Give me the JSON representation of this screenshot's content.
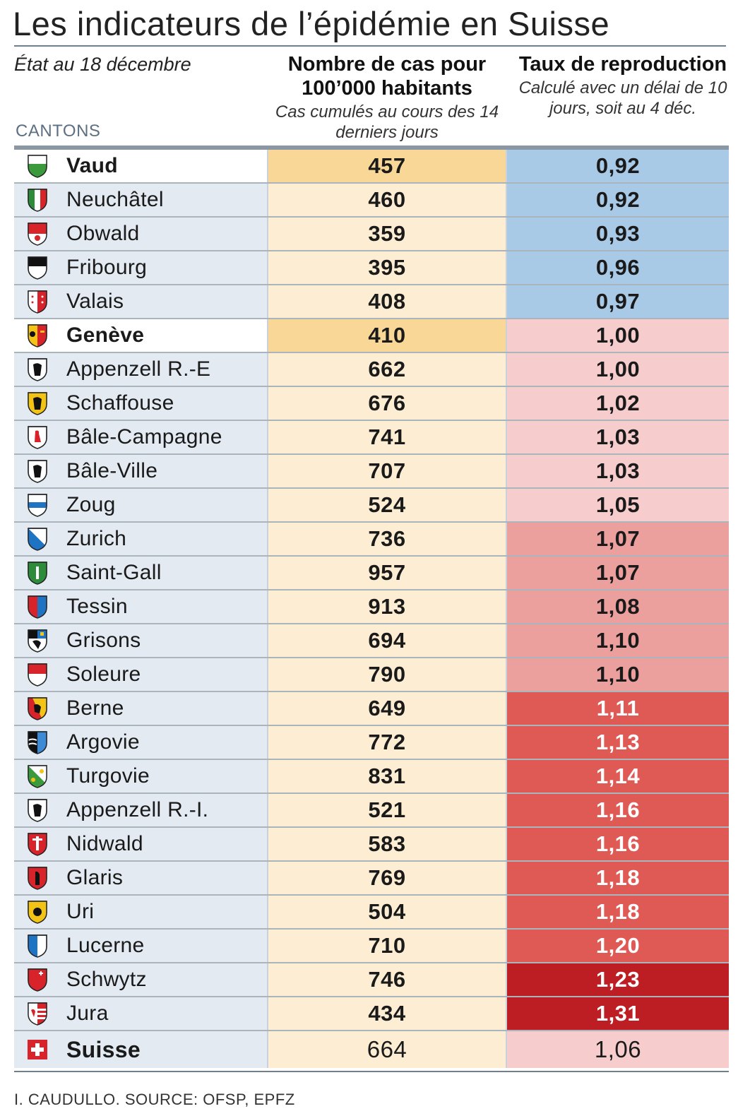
{
  "title": "Les indicateurs de l’épidémie en Suisse",
  "date": "État au 18 décembre",
  "cantons_label": "CANTONS",
  "columns": {
    "cases_title": "Nombre de cas pour 100’000 habitants",
    "cases_subtitle": "Cas cumulés au cours des 14 derniers jours",
    "rt_title": "Taux de reproduction",
    "rt_subtitle": "Calculé avec un délai de 10 jours, soit au 4 déc."
  },
  "colors": {
    "rt_below_1": "#a9cae6",
    "rt_1_to_105": "#f6cccc",
    "rt_106_to_110": "#eca09e",
    "rt_111_to_120": "#e05a55",
    "rt_above_120": "#bd1e24",
    "cases_bg": "#fdeed3",
    "cases_highlight": "#f9d897",
    "name_bg": "#e3eaf2"
  },
  "chart_data": {
    "type": "table",
    "title": "Les indicateurs de l’épidémie en Suisse",
    "columns": [
      "CANTONS",
      "Nombre de cas pour 100’000 habitants",
      "Taux de reproduction"
    ],
    "rows": [
      {
        "canton": "Vaud",
        "cases": 457,
        "rt": "0,92",
        "rt_value": 0.92,
        "highlight": true,
        "icon": "vaud-coat-of-arms-icon"
      },
      {
        "canton": "Neuchâtel",
        "cases": 460,
        "rt": "0,92",
        "rt_value": 0.92,
        "highlight": false,
        "icon": "neuchatel-coat-of-arms-icon"
      },
      {
        "canton": "Obwald",
        "cases": 359,
        "rt": "0,93",
        "rt_value": 0.93,
        "highlight": false,
        "icon": "obwald-coat-of-arms-icon"
      },
      {
        "canton": "Fribourg",
        "cases": 395,
        "rt": "0,96",
        "rt_value": 0.96,
        "highlight": false,
        "icon": "fribourg-coat-of-arms-icon"
      },
      {
        "canton": "Valais",
        "cases": 408,
        "rt": "0,97",
        "rt_value": 0.97,
        "highlight": false,
        "icon": "valais-coat-of-arms-icon"
      },
      {
        "canton": "Genève",
        "cases": 410,
        "rt": "1,00",
        "rt_value": 1.0,
        "highlight": true,
        "icon": "geneve-coat-of-arms-icon"
      },
      {
        "canton": "Appenzell R.-E",
        "cases": 662,
        "rt": "1,00",
        "rt_value": 1.0,
        "highlight": false,
        "icon": "appenzell-re-coat-of-arms-icon"
      },
      {
        "canton": "Schaffouse",
        "cases": 676,
        "rt": "1,02",
        "rt_value": 1.02,
        "highlight": false,
        "icon": "schaffouse-coat-of-arms-icon"
      },
      {
        "canton": "Bâle-Campagne",
        "cases": 741,
        "rt": "1,03",
        "rt_value": 1.03,
        "highlight": false,
        "icon": "bale-campagne-coat-of-arms-icon"
      },
      {
        "canton": "Bâle-Ville",
        "cases": 707,
        "rt": "1,03",
        "rt_value": 1.03,
        "highlight": false,
        "icon": "bale-ville-coat-of-arms-icon"
      },
      {
        "canton": "Zoug",
        "cases": 524,
        "rt": "1,05",
        "rt_value": 1.05,
        "highlight": false,
        "icon": "zoug-coat-of-arms-icon"
      },
      {
        "canton": "Zurich",
        "cases": 736,
        "rt": "1,07",
        "rt_value": 1.07,
        "highlight": false,
        "icon": "zurich-coat-of-arms-icon"
      },
      {
        "canton": "Saint-Gall",
        "cases": 957,
        "rt": "1,07",
        "rt_value": 1.07,
        "highlight": false,
        "icon": "saint-gall-coat-of-arms-icon"
      },
      {
        "canton": "Tessin",
        "cases": 913,
        "rt": "1,08",
        "rt_value": 1.08,
        "highlight": false,
        "icon": "tessin-coat-of-arms-icon"
      },
      {
        "canton": "Grisons",
        "cases": 694,
        "rt": "1,10",
        "rt_value": 1.1,
        "highlight": false,
        "icon": "grisons-coat-of-arms-icon"
      },
      {
        "canton": "Soleure",
        "cases": 790,
        "rt": "1,10",
        "rt_value": 1.1,
        "highlight": false,
        "icon": "soleure-coat-of-arms-icon"
      },
      {
        "canton": "Berne",
        "cases": 649,
        "rt": "1,11",
        "rt_value": 1.11,
        "highlight": false,
        "icon": "berne-coat-of-arms-icon"
      },
      {
        "canton": "Argovie",
        "cases": 772,
        "rt": "1,13",
        "rt_value": 1.13,
        "highlight": false,
        "icon": "argovie-coat-of-arms-icon"
      },
      {
        "canton": "Turgovie",
        "cases": 831,
        "rt": "1,14",
        "rt_value": 1.14,
        "highlight": false,
        "icon": "turgovie-coat-of-arms-icon"
      },
      {
        "canton": "Appenzell R.-I.",
        "cases": 521,
        "rt": "1,16",
        "rt_value": 1.16,
        "highlight": false,
        "icon": "appenzell-ri-coat-of-arms-icon"
      },
      {
        "canton": "Nidwald",
        "cases": 583,
        "rt": "1,16",
        "rt_value": 1.16,
        "highlight": false,
        "icon": "nidwald-coat-of-arms-icon"
      },
      {
        "canton": "Glaris",
        "cases": 769,
        "rt": "1,18",
        "rt_value": 1.18,
        "highlight": false,
        "icon": "glaris-coat-of-arms-icon"
      },
      {
        "canton": "Uri",
        "cases": 504,
        "rt": "1,18",
        "rt_value": 1.18,
        "highlight": false,
        "icon": "uri-coat-of-arms-icon"
      },
      {
        "canton": "Lucerne",
        "cases": 710,
        "rt": "1,20",
        "rt_value": 1.2,
        "highlight": false,
        "icon": "lucerne-coat-of-arms-icon"
      },
      {
        "canton": "Schwytz",
        "cases": 746,
        "rt": "1,23",
        "rt_value": 1.23,
        "highlight": false,
        "icon": "schwytz-coat-of-arms-icon"
      },
      {
        "canton": "Jura",
        "cases": 434,
        "rt": "1,31",
        "rt_value": 1.31,
        "highlight": false,
        "icon": "jura-coat-of-arms-icon"
      }
    ],
    "total": {
      "canton": "Suisse",
      "cases": 664,
      "rt": "1,06",
      "rt_value": 1.06,
      "icon": "swiss-flag-icon"
    }
  },
  "source": "I. CAUDULLO. SOURCE: OFSP, EPFZ"
}
